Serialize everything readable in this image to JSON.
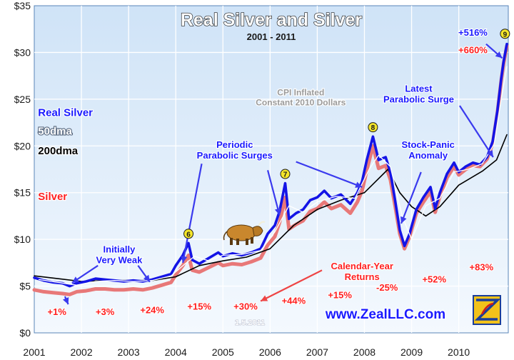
{
  "chart_data": {
    "type": "line",
    "title": "Real Silver and Silver",
    "subtitle": "2001 - 2011",
    "note": "CPI Inflated Constant 2010 Dollars",
    "date_stamp": "1.5.2011",
    "website": "www.ZealLLC.com",
    "x_tick_labels": [
      "2001",
      "2002",
      "2003",
      "2004",
      "2005",
      "2006",
      "2007",
      "2008",
      "2009",
      "2010"
    ],
    "y_tick_labels": [
      "$0",
      "$5",
      "$10",
      "$15",
      "$20",
      "$25",
      "$30",
      "$35"
    ],
    "xlim": [
      2001,
      2011.05
    ],
    "ylim": [
      0,
      35
    ],
    "grid": true,
    "legend": [
      {
        "label": "Real Silver",
        "color": "#1a1aff"
      },
      {
        "label": "50dma",
        "color": "#ffffff"
      },
      {
        "label": "200dma",
        "color": "#000000"
      },
      {
        "label": "Silver",
        "color": "#ff2020"
      }
    ],
    "series": [
      {
        "name": "Real Silver",
        "color": "#1414e6",
        "points": [
          [
            2001.0,
            5.9
          ],
          [
            2001.2,
            5.6
          ],
          [
            2001.4,
            5.4
          ],
          [
            2001.6,
            5.3
          ],
          [
            2001.75,
            5.0
          ],
          [
            2001.9,
            5.3
          ],
          [
            2002.1,
            5.5
          ],
          [
            2002.3,
            5.8
          ],
          [
            2002.5,
            5.7
          ],
          [
            2002.7,
            5.6
          ],
          [
            2002.9,
            5.5
          ],
          [
            2003.1,
            5.6
          ],
          [
            2003.3,
            5.5
          ],
          [
            2003.5,
            5.7
          ],
          [
            2003.7,
            6.0
          ],
          [
            2003.9,
            6.3
          ],
          [
            2004.0,
            7.2
          ],
          [
            2004.15,
            8.3
          ],
          [
            2004.27,
            9.6
          ],
          [
            2004.35,
            7.8
          ],
          [
            2004.5,
            7.4
          ],
          [
            2004.7,
            8.0
          ],
          [
            2004.9,
            8.6
          ],
          [
            2005.0,
            8.2
          ],
          [
            2005.2,
            8.5
          ],
          [
            2005.4,
            8.3
          ],
          [
            2005.6,
            8.6
          ],
          [
            2005.8,
            9.0
          ],
          [
            2005.95,
            10.6
          ],
          [
            2006.1,
            11.5
          ],
          [
            2006.2,
            13.0
          ],
          [
            2006.32,
            16.0
          ],
          [
            2006.4,
            12.2
          ],
          [
            2006.55,
            12.8
          ],
          [
            2006.7,
            13.2
          ],
          [
            2006.85,
            14.2
          ],
          [
            2007.0,
            14.5
          ],
          [
            2007.15,
            15.2
          ],
          [
            2007.3,
            14.4
          ],
          [
            2007.5,
            14.8
          ],
          [
            2007.7,
            13.8
          ],
          [
            2007.85,
            15.0
          ],
          [
            2007.95,
            16.2
          ],
          [
            2008.05,
            18.5
          ],
          [
            2008.18,
            21.0
          ],
          [
            2008.3,
            18.5
          ],
          [
            2008.45,
            18.8
          ],
          [
            2008.55,
            17.2
          ],
          [
            2008.65,
            14.2
          ],
          [
            2008.75,
            11.0
          ],
          [
            2008.85,
            9.3
          ],
          [
            2008.95,
            10.5
          ],
          [
            2009.1,
            13.2
          ],
          [
            2009.25,
            14.5
          ],
          [
            2009.4,
            15.6
          ],
          [
            2009.5,
            13.3
          ],
          [
            2009.6,
            15.0
          ],
          [
            2009.75,
            17.0
          ],
          [
            2009.9,
            18.2
          ],
          [
            2010.0,
            17.2
          ],
          [
            2010.15,
            17.8
          ],
          [
            2010.3,
            18.2
          ],
          [
            2010.45,
            18.0
          ],
          [
            2010.6,
            18.8
          ],
          [
            2010.72,
            20.5
          ],
          [
            2010.82,
            23.8
          ],
          [
            2010.9,
            27.2
          ],
          [
            2010.95,
            29.0
          ],
          [
            2011.02,
            30.9
          ]
        ]
      },
      {
        "name": "50dma",
        "color": "#ffffff",
        "points": [
          [
            2001.1,
            5.7
          ],
          [
            2001.5,
            5.4
          ],
          [
            2001.9,
            5.1
          ],
          [
            2002.3,
            5.5
          ],
          [
            2002.7,
            5.6
          ],
          [
            2003.1,
            5.5
          ],
          [
            2003.5,
            5.6
          ],
          [
            2003.9,
            6.1
          ],
          [
            2004.2,
            7.4
          ],
          [
            2004.4,
            8.2
          ],
          [
            2004.7,
            7.7
          ],
          [
            2005.0,
            8.3
          ],
          [
            2005.4,
            8.4
          ],
          [
            2005.8,
            8.8
          ],
          [
            2006.1,
            10.8
          ],
          [
            2006.4,
            13.6
          ],
          [
            2006.7,
            12.9
          ],
          [
            2007.0,
            14.0
          ],
          [
            2007.4,
            14.6
          ],
          [
            2007.8,
            14.4
          ],
          [
            2008.1,
            17.5
          ],
          [
            2008.3,
            19.0
          ],
          [
            2008.55,
            17.8
          ],
          [
            2008.8,
            12.5
          ],
          [
            2009.0,
            10.0
          ],
          [
            2009.3,
            13.6
          ],
          [
            2009.6,
            14.4
          ],
          [
            2009.9,
            17.2
          ],
          [
            2010.2,
            17.5
          ],
          [
            2010.5,
            18.1
          ],
          [
            2010.75,
            20.2
          ],
          [
            2010.9,
            25.0
          ],
          [
            2011.02,
            28.5
          ]
        ]
      },
      {
        "name": "200dma",
        "color": "#000000",
        "points": [
          [
            2001.0,
            6.1
          ],
          [
            2001.5,
            5.8
          ],
          [
            2002.0,
            5.5
          ],
          [
            2002.5,
            5.6
          ],
          [
            2003.0,
            5.6
          ],
          [
            2003.5,
            5.6
          ],
          [
            2004.0,
            6.0
          ],
          [
            2004.5,
            7.2
          ],
          [
            2005.0,
            7.7
          ],
          [
            2005.5,
            8.1
          ],
          [
            2006.0,
            9.0
          ],
          [
            2006.5,
            11.5
          ],
          [
            2007.0,
            13.2
          ],
          [
            2007.5,
            14.2
          ],
          [
            2008.0,
            15.0
          ],
          [
            2008.5,
            17.5
          ],
          [
            2008.75,
            15.0
          ],
          [
            2009.0,
            13.5
          ],
          [
            2009.3,
            12.5
          ],
          [
            2009.6,
            13.5
          ],
          [
            2010.0,
            15.8
          ],
          [
            2010.5,
            17.3
          ],
          [
            2010.8,
            18.5
          ],
          [
            2011.02,
            21.2
          ]
        ]
      },
      {
        "name": "Silver",
        "color": "#e87878",
        "points": [
          [
            2001.0,
            4.6
          ],
          [
            2001.2,
            4.4
          ],
          [
            2001.4,
            4.3
          ],
          [
            2001.6,
            4.2
          ],
          [
            2001.75,
            4.1
          ],
          [
            2001.9,
            4.4
          ],
          [
            2002.1,
            4.5
          ],
          [
            2002.3,
            4.7
          ],
          [
            2002.5,
            4.7
          ],
          [
            2002.7,
            4.6
          ],
          [
            2002.9,
            4.6
          ],
          [
            2003.1,
            4.7
          ],
          [
            2003.3,
            4.6
          ],
          [
            2003.5,
            4.8
          ],
          [
            2003.7,
            5.1
          ],
          [
            2003.9,
            5.4
          ],
          [
            2004.0,
            6.2
          ],
          [
            2004.15,
            7.2
          ],
          [
            2004.27,
            8.3
          ],
          [
            2004.35,
            6.7
          ],
          [
            2004.5,
            6.5
          ],
          [
            2004.7,
            7.0
          ],
          [
            2004.9,
            7.5
          ],
          [
            2005.0,
            7.2
          ],
          [
            2005.2,
            7.4
          ],
          [
            2005.4,
            7.3
          ],
          [
            2005.6,
            7.6
          ],
          [
            2005.8,
            8.0
          ],
          [
            2005.95,
            9.4
          ],
          [
            2006.1,
            10.3
          ],
          [
            2006.2,
            11.8
          ],
          [
            2006.32,
            14.5
          ],
          [
            2006.4,
            11.1
          ],
          [
            2006.55,
            11.6
          ],
          [
            2006.7,
            12.0
          ],
          [
            2006.85,
            13.0
          ],
          [
            2007.0,
            13.3
          ],
          [
            2007.15,
            14.0
          ],
          [
            2007.3,
            13.3
          ],
          [
            2007.5,
            13.7
          ],
          [
            2007.7,
            12.8
          ],
          [
            2007.85,
            14.0
          ],
          [
            2007.95,
            15.2
          ],
          [
            2008.05,
            17.4
          ],
          [
            2008.18,
            20.0
          ],
          [
            2008.3,
            17.6
          ],
          [
            2008.45,
            17.9
          ],
          [
            2008.55,
            16.4
          ],
          [
            2008.65,
            13.6
          ],
          [
            2008.75,
            10.6
          ],
          [
            2008.85,
            9.0
          ],
          [
            2008.95,
            10.2
          ],
          [
            2009.1,
            12.8
          ],
          [
            2009.25,
            14.0
          ],
          [
            2009.4,
            15.1
          ],
          [
            2009.5,
            12.9
          ],
          [
            2009.6,
            14.6
          ],
          [
            2009.75,
            16.6
          ],
          [
            2009.9,
            17.8
          ],
          [
            2010.0,
            16.9
          ],
          [
            2010.15,
            17.5
          ],
          [
            2010.3,
            17.9
          ],
          [
            2010.45,
            17.8
          ],
          [
            2010.6,
            18.6
          ],
          [
            2010.72,
            20.3
          ],
          [
            2010.82,
            23.6
          ],
          [
            2010.9,
            27.0
          ],
          [
            2010.95,
            28.8
          ],
          [
            2011.02,
            30.7
          ]
        ]
      }
    ],
    "markers": [
      {
        "label": "6",
        "x": 2004.27,
        "y": 10.6
      },
      {
        "label": "7",
        "x": 2006.32,
        "y": 17.0
      },
      {
        "label": "8",
        "x": 2008.18,
        "y": 22.0
      },
      {
        "label": "9",
        "x": 2010.98,
        "y": 32.0
      }
    ],
    "annotations": [
      {
        "lines": [
          "Real Silver"
        ],
        "color": "#1a1aff",
        "x": 2001.08,
        "y": 23.2,
        "align": "start",
        "size": 15
      },
      {
        "lines": [
          "50dma"
        ],
        "color": "#ffffff",
        "x": 2001.08,
        "y": 21.2,
        "align": "start",
        "size": 15
      },
      {
        "lines": [
          "200dma"
        ],
        "color": "#000000",
        "x": 2001.08,
        "y": 19.1,
        "align": "start",
        "size": 15
      },
      {
        "lines": [
          "Silver"
        ],
        "color": "#ff2020",
        "x": 2001.08,
        "y": 14.2,
        "align": "start",
        "size": 15
      },
      {
        "lines": [
          "Initially",
          "Very Weak"
        ],
        "color": "#1a1aff",
        "x": 2002.8,
        "y": 8.6,
        "align": "middle",
        "size": 13
      },
      {
        "lines": [
          "Periodic",
          "Parabolic Surges"
        ],
        "color": "#1a1aff",
        "x": 2005.25,
        "y": 19.8,
        "align": "middle",
        "size": 13
      },
      {
        "lines": [
          "Stock-Panic",
          "Anomaly"
        ],
        "color": "#1a1aff",
        "x": 2009.35,
        "y": 19.8,
        "align": "middle",
        "size": 13
      },
      {
        "lines": [
          "Latest",
          "Parabolic Surge"
        ],
        "color": "#1a1aff",
        "x": 2009.15,
        "y": 25.8,
        "align": "middle",
        "size": 13
      },
      {
        "lines": [
          "+516%"
        ],
        "color": "#1a1aff",
        "x": 2010.3,
        "y": 31.8,
        "align": "middle",
        "size": 13
      },
      {
        "lines": [
          "+660%"
        ],
        "color": "#ff2020",
        "x": 2010.3,
        "y": 29.9,
        "align": "middle",
        "size": 13
      },
      {
        "lines": [
          "Calendar-Year",
          "Returns"
        ],
        "color": "#ff2020",
        "x": 2007.95,
        "y": 6.8,
        "align": "middle",
        "size": 13
      },
      {
        "lines": [
          "CPI Inflated",
          "Constant 2010 Dollars"
        ],
        "color": "#9a9a9a",
        "x": 2006.65,
        "y": 25.4,
        "align": "middle",
        "size": 12
      }
    ],
    "returns_labels": [
      {
        "label": "+1%",
        "x": 2001.48,
        "y": 1.9
      },
      {
        "label": "+3%",
        "x": 2002.5,
        "y": 1.9
      },
      {
        "label": "+24%",
        "x": 2003.5,
        "y": 2.1
      },
      {
        "label": "+15%",
        "x": 2004.5,
        "y": 2.5
      },
      {
        "label": "+30%",
        "x": 2005.48,
        "y": 2.5
      },
      {
        "label": "+44%",
        "x": 2006.5,
        "y": 3.1
      },
      {
        "label": "+15%",
        "x": 2007.48,
        "y": 3.7
      },
      {
        "label": "-25%",
        "x": 2008.48,
        "y": 4.5
      },
      {
        "label": "+52%",
        "x": 2009.48,
        "y": 5.4
      },
      {
        "label": "+83%",
        "x": 2010.48,
        "y": 6.7
      }
    ],
    "arrows": [
      {
        "color": "#3a3aee",
        "from": [
          2002.35,
          7.2
        ],
        "to": [
          2001.8,
          5.35
        ]
      },
      {
        "color": "#3a3aee",
        "from": [
          2003.2,
          7.2
        ],
        "to": [
          2003.45,
          5.45
        ]
      },
      {
        "color": "#3a3aee",
        "from": [
          2004.55,
          18.1
        ],
        "to": [
          2004.15,
          7.5
        ]
      },
      {
        "color": "#3a3aee",
        "from": [
          2005.95,
          17.4
        ],
        "to": [
          2006.2,
          12.6
        ]
      },
      {
        "color": "#3a3aee",
        "from": [
          2006.55,
          18.3
        ],
        "to": [
          2007.95,
          15.6
        ]
      },
      {
        "color": "#3a3aee",
        "from": [
          2009.2,
          17.2
        ],
        "to": [
          2008.78,
          11.7
        ]
      },
      {
        "color": "#3a3aee",
        "from": [
          2010.02,
          24.3
        ],
        "to": [
          2010.73,
          18.8
        ]
      },
      {
        "color": "#3a3aee",
        "from": [
          2010.58,
          30.9
        ],
        "to": [
          2010.92,
          29.4
        ]
      },
      {
        "color": "#3a3aee",
        "from": [
          2001.65,
          3.9
        ],
        "to": [
          2001.72,
          3.05
        ]
      },
      {
        "color": "#ee4444",
        "from": [
          2007.1,
          6.7
        ],
        "to": [
          2005.8,
          3.4
        ]
      }
    ]
  }
}
